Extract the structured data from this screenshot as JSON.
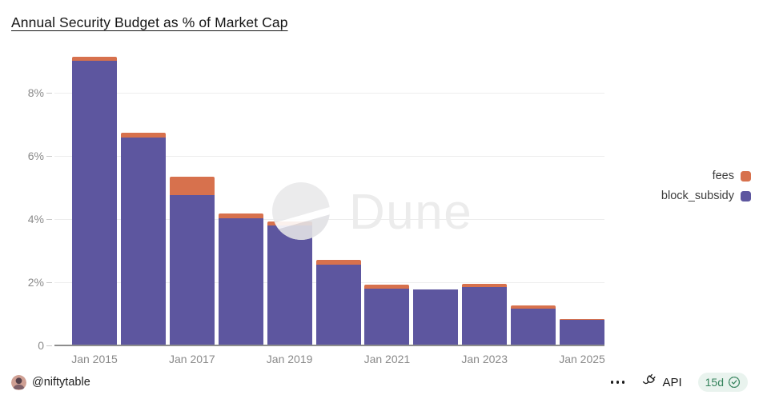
{
  "title": "Annual Security Budget as % of Market Cap",
  "chart_data": {
    "type": "bar",
    "stacked": true,
    "categories": [
      "Jan 2015",
      "Jan 2016",
      "Jan 2017",
      "Jan 2018",
      "Jan 2019",
      "Jan 2020",
      "Jan 2021",
      "Jan 2022",
      "Jan 2023",
      "Jan 2024",
      "Jan 2025"
    ],
    "series": [
      {
        "name": "fees",
        "color": "#d7714d",
        "values": [
          0.11,
          0.15,
          0.58,
          0.15,
          0.12,
          0.13,
          0.13,
          0.02,
          0.12,
          0.1,
          0.01
        ]
      },
      {
        "name": "block_subsidy",
        "color": "#5d569f",
        "values": [
          9.02,
          6.58,
          4.76,
          4.02,
          3.8,
          2.57,
          1.8,
          1.76,
          1.84,
          1.16,
          0.82
        ]
      }
    ],
    "title": "Annual Security Budget as % of Market Cap",
    "xlabel": "",
    "ylabel": "",
    "ylim": [
      0,
      9.42
    ],
    "y_ticks": [
      {
        "label": "0",
        "value": 0
      },
      {
        "label": "2%",
        "value": 2
      },
      {
        "label": "4%",
        "value": 4
      },
      {
        "label": "6%",
        "value": 6
      },
      {
        "label": "8%",
        "value": 8
      }
    ],
    "x_ticks": [
      {
        "label": "Jan 2015",
        "index": 0
      },
      {
        "label": "Jan 2017",
        "index": 2
      },
      {
        "label": "Jan 2019",
        "index": 4
      },
      {
        "label": "Jan 2021",
        "index": 6
      },
      {
        "label": "Jan 2023",
        "index": 8
      },
      {
        "label": "Jan 2025",
        "index": 10
      }
    ],
    "grid": "horizontal",
    "legend_position": "right"
  },
  "legend": {
    "items": [
      {
        "label": "fees",
        "color": "#d7714d"
      },
      {
        "label": "block_subsidy",
        "color": "#5d569f"
      }
    ]
  },
  "watermark": {
    "text": "Dune"
  },
  "footer": {
    "author": "@niftytable",
    "api_label": "API",
    "badge_text": "15d"
  },
  "colors": {
    "fees": "#d7714d",
    "block_subsidy": "#5d569f",
    "axis_text": "#8a8a8a",
    "gridline": "#ededed",
    "axis_line": "#8d8d8d",
    "badge_bg": "#e9f3ee",
    "badge_fg": "#35835c",
    "title_text": "#141414",
    "watermark": "#ececec"
  }
}
